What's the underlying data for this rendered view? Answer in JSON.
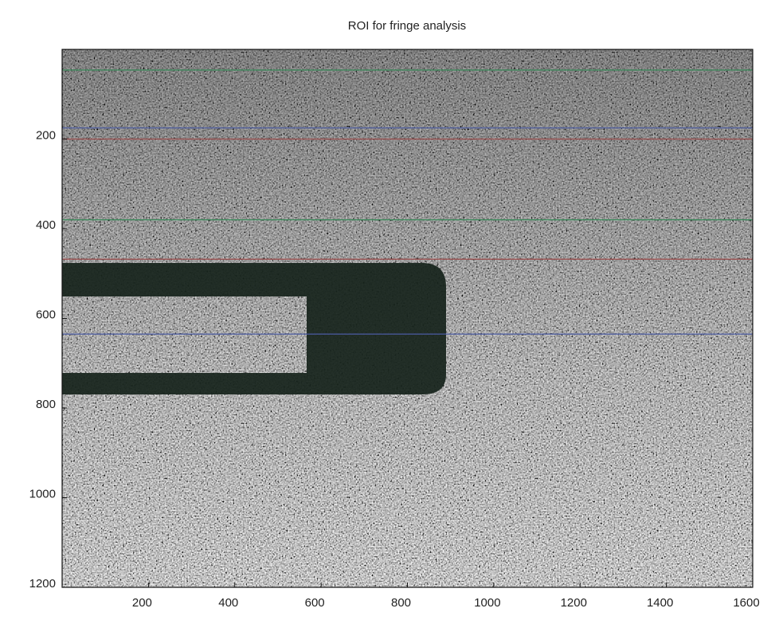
{
  "chart_data": {
    "type": "image",
    "title": "ROI for fringe analysis",
    "xlim": [
      0,
      1600
    ],
    "ylim": [
      0,
      1200
    ],
    "y_reversed": true,
    "xticks": [
      200,
      400,
      600,
      800,
      1000,
      1200,
      1400,
      1600
    ],
    "yticks": [
      200,
      400,
      600,
      800,
      1000,
      1200
    ],
    "hlines": [
      {
        "y": 46,
        "color": "#3a8a5a"
      },
      {
        "y": 175,
        "color": "#4a5aa0"
      },
      {
        "y": 200,
        "color": "#9a4a4a"
      },
      {
        "y": 380,
        "color": "#3a8a5a"
      },
      {
        "y": 468,
        "color": "#9a4a4a"
      },
      {
        "y": 635,
        "color": "#4a5aa0"
      }
    ]
  }
}
